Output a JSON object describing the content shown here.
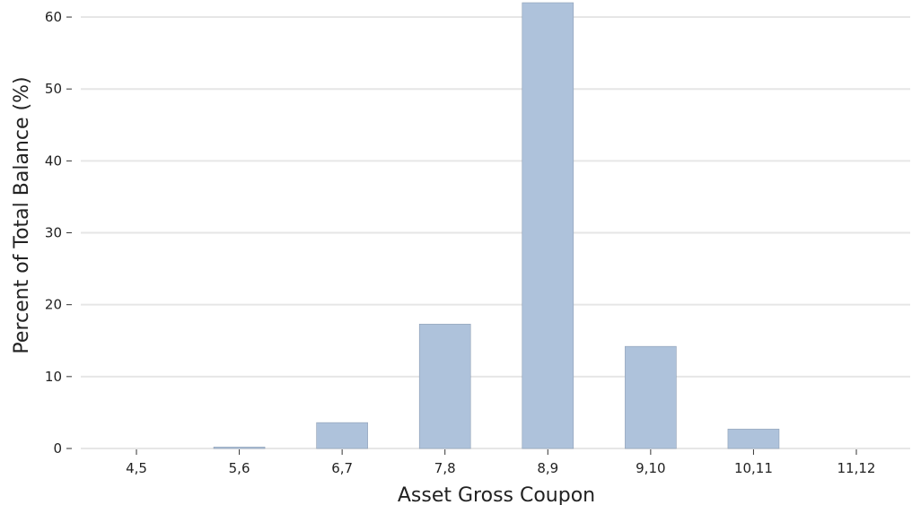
{
  "chart_data": {
    "type": "bar",
    "categories": [
      "4,5",
      "5,6",
      "6,7",
      "7,8",
      "8,9",
      "9,10",
      "10,11",
      "11,12"
    ],
    "values": [
      0,
      0.2,
      3.6,
      17.3,
      62,
      14.2,
      2.7,
      0
    ],
    "xlabel": "Asset Gross Coupon",
    "ylabel": "Percent of Total Balance (%)",
    "ylim": [
      0,
      62
    ],
    "yticks": [
      0,
      10,
      20,
      30,
      40,
      50,
      60
    ],
    "grid": "horizontal",
    "colors": {
      "bar_fill": "#aec2db",
      "bar_edge": "#8e9fb5",
      "grid": "#e6e6e6"
    }
  }
}
